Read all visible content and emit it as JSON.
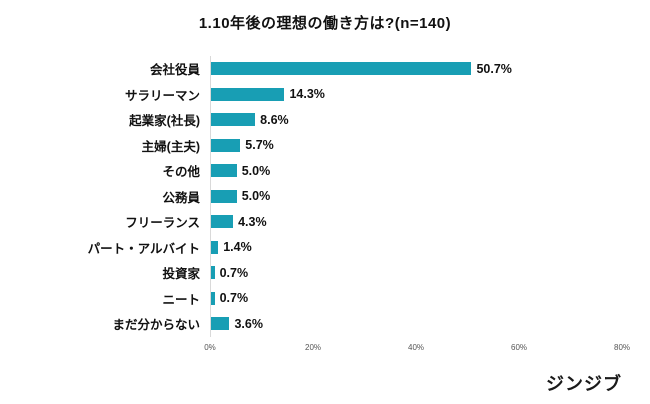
{
  "chart_data": {
    "type": "bar",
    "orientation": "horizontal",
    "title": "1.10年後の理想の働き方は?(n=140)",
    "categories": [
      "会社役員",
      "サラリーマン",
      "起業家(社長)",
      "主婦(主夫)",
      "その他",
      "公務員",
      "フリーランス",
      "パート・アルバイト",
      "投資家",
      "ニート",
      "まだ分からない"
    ],
    "values": [
      50.7,
      14.3,
      8.6,
      5.7,
      5.0,
      5.0,
      4.3,
      1.4,
      0.7,
      0.7,
      3.6
    ],
    "value_labels": [
      "50.7%",
      "14.3%",
      "8.6%",
      "5.7%",
      "5.0%",
      "5.0%",
      "4.3%",
      "1.4%",
      "0.7%",
      "0.7%",
      "3.6%"
    ],
    "xlim": [
      0,
      80
    ],
    "x_ticks": [
      "0%",
      "20%",
      "40%",
      "60%",
      "80%"
    ],
    "bar_color": "#189EB4",
    "grid": false,
    "legend": false,
    "xlabel": "",
    "ylabel": ""
  },
  "footer": {
    "logo_text": "ジンジブ"
  }
}
